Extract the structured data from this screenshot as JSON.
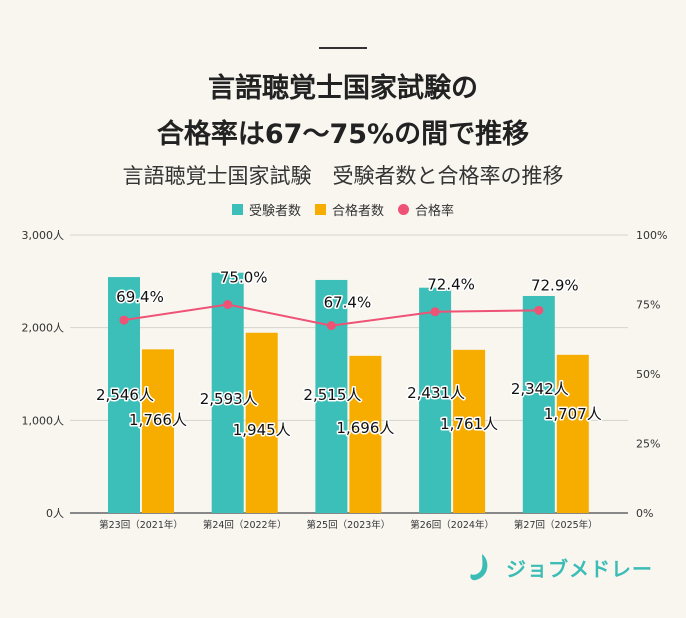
{
  "title_line1": "言語聴覚士国家試験の",
  "title_line2": "合格率は67～75%の間で推移",
  "subtitle": "言語聴覚士国家試験　受験者数と合格率の推移",
  "logo_text": "ジョブメドレー",
  "colors": {
    "examinees": "#3bbfb8",
    "passers": "#f7ac00",
    "rate": "#ee5275",
    "background": "#f9f6f0"
  },
  "chart_data": {
    "type": "bar+line",
    "categories": [
      "第23回（2021年）",
      "第24回（2022年）",
      "第25回（2023年）",
      "第26回（2024年）",
      "第27回（2025年）"
    ],
    "series": [
      {
        "name": "受験者数",
        "type": "bar",
        "axis": "left",
        "values": [
          2546,
          2593,
          2515,
          2431,
          2342
        ],
        "labels": [
          "2,546人",
          "2,593人",
          "2,515人",
          "2,431人",
          "2,342人"
        ]
      },
      {
        "name": "合格者数",
        "type": "bar",
        "axis": "left",
        "values": [
          1766,
          1945,
          1696,
          1761,
          1707
        ],
        "labels": [
          "1,766人",
          "1,945人",
          "1,696人",
          "1,761人",
          "1,707人"
        ]
      },
      {
        "name": "合格率",
        "type": "line",
        "axis": "right",
        "values": [
          69.4,
          75.0,
          67.4,
          72.4,
          72.9
        ],
        "labels": [
          "69.4%",
          "75.0%",
          "67.4%",
          "72.4%",
          "72.9%"
        ]
      }
    ],
    "y_left": {
      "range": [
        0,
        3000
      ],
      "ticks": [
        0,
        1000,
        2000,
        3000
      ],
      "tick_labels": [
        "0人",
        "1,000人",
        "2,000人",
        "3,000人"
      ]
    },
    "y_right": {
      "range": [
        0,
        100
      ],
      "ticks": [
        0,
        25,
        50,
        75,
        100
      ],
      "tick_labels": [
        "0%",
        "25%",
        "50%",
        "75%",
        "100%"
      ]
    },
    "grid": true,
    "legend": "top-center"
  }
}
